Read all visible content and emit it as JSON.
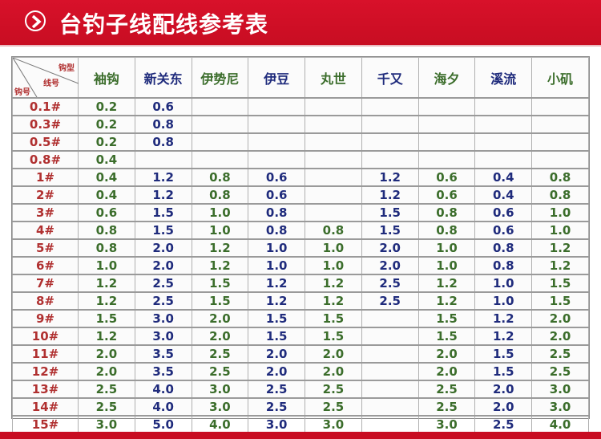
{
  "title": "台钓子线配线参考表",
  "icon": "chevron-right-circle-icon",
  "colors": {
    "banner": "#c80d22",
    "green": "#3b6d2b",
    "blue": "#1f2b7c",
    "red": "#b03030"
  },
  "corner": {
    "top_right": "钩型",
    "middle": "线号",
    "bottom_left": "钩号"
  },
  "columns": [
    {
      "label": "袖钩",
      "color": "green"
    },
    {
      "label": "新关东",
      "color": "blue"
    },
    {
      "label": "伊势尼",
      "color": "green"
    },
    {
      "label": "伊豆",
      "color": "blue"
    },
    {
      "label": "丸世",
      "color": "green"
    },
    {
      "label": "千又",
      "color": "blue"
    },
    {
      "label": "海夕",
      "color": "green"
    },
    {
      "label": "溪流",
      "color": "blue"
    },
    {
      "label": "小矶",
      "color": "green"
    }
  ],
  "rows": [
    {
      "hook": "0.1#",
      "values": [
        "0.2",
        "0.6",
        "",
        "",
        "",
        "",
        "",
        "",
        ""
      ]
    },
    {
      "hook": "0.3#",
      "values": [
        "0.2",
        "0.8",
        "",
        "",
        "",
        "",
        "",
        "",
        ""
      ]
    },
    {
      "hook": "0.5#",
      "values": [
        "0.2",
        "0.8",
        "",
        "",
        "",
        "",
        "",
        "",
        ""
      ]
    },
    {
      "hook": "0.8#",
      "values": [
        "0.4",
        "",
        "",
        "",
        "",
        "",
        "",
        "",
        ""
      ]
    },
    {
      "hook": "1#",
      "values": [
        "0.4",
        "1.2",
        "0.8",
        "0.6",
        "",
        "1.2",
        "0.6",
        "0.4",
        "0.8"
      ]
    },
    {
      "hook": "2#",
      "values": [
        "0.4",
        "1.2",
        "0.8",
        "0.6",
        "",
        "1.2",
        "0.6",
        "0.4",
        "0.8"
      ]
    },
    {
      "hook": "3#",
      "values": [
        "0.6",
        "1.5",
        "1.0",
        "0.8",
        "",
        "1.5",
        "0.8",
        "0.6",
        "1.0"
      ]
    },
    {
      "hook": "4#",
      "values": [
        "0.8",
        "1.5",
        "1.0",
        "0.8",
        "0.8",
        "1.5",
        "0.8",
        "0.6",
        "1.0"
      ]
    },
    {
      "hook": "5#",
      "values": [
        "0.8",
        "2.0",
        "1.2",
        "1.0",
        "1.0",
        "2.0",
        "1.0",
        "0.8",
        "1.2"
      ]
    },
    {
      "hook": "6#",
      "values": [
        "1.0",
        "2.0",
        "1.2",
        "1.0",
        "1.0",
        "2.0",
        "1.0",
        "0.8",
        "1.2"
      ]
    },
    {
      "hook": "7#",
      "values": [
        "1.2",
        "2.5",
        "1.5",
        "1.2",
        "1.2",
        "2.5",
        "1.2",
        "1.0",
        "1.5"
      ]
    },
    {
      "hook": "8#",
      "values": [
        "1.2",
        "2.5",
        "1.5",
        "1.2",
        "1.2",
        "2.5",
        "1.2",
        "1.0",
        "1.5"
      ]
    },
    {
      "hook": "9#",
      "values": [
        "1.5",
        "3.0",
        "2.0",
        "1.5",
        "1.5",
        "",
        "1.5",
        "1.2",
        "2.0"
      ]
    },
    {
      "hook": "10#",
      "values": [
        "1.2",
        "3.0",
        "2.0",
        "1.5",
        "1.5",
        "",
        "1.5",
        "1.2",
        "2.0"
      ]
    },
    {
      "hook": "11#",
      "values": [
        "2.0",
        "3.5",
        "2.5",
        "2.0",
        "2.0",
        "",
        "2.0",
        "1.5",
        "2.5"
      ]
    },
    {
      "hook": "12#",
      "values": [
        "2.0",
        "3.5",
        "2.5",
        "2.0",
        "2.0",
        "",
        "2.0",
        "1.5",
        "2.5"
      ]
    },
    {
      "hook": "13#",
      "values": [
        "2.5",
        "4.0",
        "3.0",
        "2.5",
        "2.5",
        "",
        "2.5",
        "2.0",
        "3.0"
      ]
    },
    {
      "hook": "14#",
      "values": [
        "2.5",
        "4.0",
        "3.0",
        "2.5",
        "2.5",
        "",
        "2.5",
        "2.0",
        "3.0"
      ]
    },
    {
      "hook": "15#",
      "values": [
        "3.0",
        "5.0",
        "4.0",
        "3.0",
        "3.0",
        "",
        "3.0",
        "2.5",
        "4.0"
      ]
    }
  ]
}
